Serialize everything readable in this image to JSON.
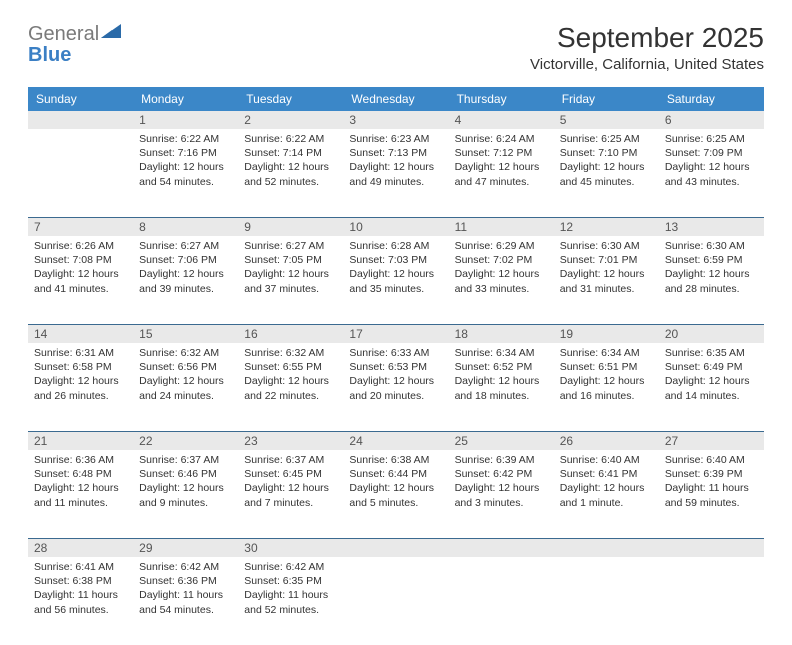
{
  "logo": {
    "text_main": "General",
    "text_sub": "Blue",
    "icon_color": "#2a6aa8"
  },
  "title": {
    "month_year": "September 2025",
    "location": "Victorville, California, United States"
  },
  "colors": {
    "header_bg": "#3b87c8",
    "header_text": "#ffffff",
    "daynum_bg": "#e9e9e9",
    "week_border": "#3b6a90",
    "text": "#333333"
  },
  "day_names": [
    "Sunday",
    "Monday",
    "Tuesday",
    "Wednesday",
    "Thursday",
    "Friday",
    "Saturday"
  ],
  "weeks": [
    {
      "nums": [
        "",
        "1",
        "2",
        "3",
        "4",
        "5",
        "6"
      ],
      "cells": [
        null,
        {
          "sunrise": "Sunrise: 6:22 AM",
          "sunset": "Sunset: 7:16 PM",
          "daylight": "Daylight: 12 hours and 54 minutes."
        },
        {
          "sunrise": "Sunrise: 6:22 AM",
          "sunset": "Sunset: 7:14 PM",
          "daylight": "Daylight: 12 hours and 52 minutes."
        },
        {
          "sunrise": "Sunrise: 6:23 AM",
          "sunset": "Sunset: 7:13 PM",
          "daylight": "Daylight: 12 hours and 49 minutes."
        },
        {
          "sunrise": "Sunrise: 6:24 AM",
          "sunset": "Sunset: 7:12 PM",
          "daylight": "Daylight: 12 hours and 47 minutes."
        },
        {
          "sunrise": "Sunrise: 6:25 AM",
          "sunset": "Sunset: 7:10 PM",
          "daylight": "Daylight: 12 hours and 45 minutes."
        },
        {
          "sunrise": "Sunrise: 6:25 AM",
          "sunset": "Sunset: 7:09 PM",
          "daylight": "Daylight: 12 hours and 43 minutes."
        }
      ]
    },
    {
      "nums": [
        "7",
        "8",
        "9",
        "10",
        "11",
        "12",
        "13"
      ],
      "cells": [
        {
          "sunrise": "Sunrise: 6:26 AM",
          "sunset": "Sunset: 7:08 PM",
          "daylight": "Daylight: 12 hours and 41 minutes."
        },
        {
          "sunrise": "Sunrise: 6:27 AM",
          "sunset": "Sunset: 7:06 PM",
          "daylight": "Daylight: 12 hours and 39 minutes."
        },
        {
          "sunrise": "Sunrise: 6:27 AM",
          "sunset": "Sunset: 7:05 PM",
          "daylight": "Daylight: 12 hours and 37 minutes."
        },
        {
          "sunrise": "Sunrise: 6:28 AM",
          "sunset": "Sunset: 7:03 PM",
          "daylight": "Daylight: 12 hours and 35 minutes."
        },
        {
          "sunrise": "Sunrise: 6:29 AM",
          "sunset": "Sunset: 7:02 PM",
          "daylight": "Daylight: 12 hours and 33 minutes."
        },
        {
          "sunrise": "Sunrise: 6:30 AM",
          "sunset": "Sunset: 7:01 PM",
          "daylight": "Daylight: 12 hours and 31 minutes."
        },
        {
          "sunrise": "Sunrise: 6:30 AM",
          "sunset": "Sunset: 6:59 PM",
          "daylight": "Daylight: 12 hours and 28 minutes."
        }
      ]
    },
    {
      "nums": [
        "14",
        "15",
        "16",
        "17",
        "18",
        "19",
        "20"
      ],
      "cells": [
        {
          "sunrise": "Sunrise: 6:31 AM",
          "sunset": "Sunset: 6:58 PM",
          "daylight": "Daylight: 12 hours and 26 minutes."
        },
        {
          "sunrise": "Sunrise: 6:32 AM",
          "sunset": "Sunset: 6:56 PM",
          "daylight": "Daylight: 12 hours and 24 minutes."
        },
        {
          "sunrise": "Sunrise: 6:32 AM",
          "sunset": "Sunset: 6:55 PM",
          "daylight": "Daylight: 12 hours and 22 minutes."
        },
        {
          "sunrise": "Sunrise: 6:33 AM",
          "sunset": "Sunset: 6:53 PM",
          "daylight": "Daylight: 12 hours and 20 minutes."
        },
        {
          "sunrise": "Sunrise: 6:34 AM",
          "sunset": "Sunset: 6:52 PM",
          "daylight": "Daylight: 12 hours and 18 minutes."
        },
        {
          "sunrise": "Sunrise: 6:34 AM",
          "sunset": "Sunset: 6:51 PM",
          "daylight": "Daylight: 12 hours and 16 minutes."
        },
        {
          "sunrise": "Sunrise: 6:35 AM",
          "sunset": "Sunset: 6:49 PM",
          "daylight": "Daylight: 12 hours and 14 minutes."
        }
      ]
    },
    {
      "nums": [
        "21",
        "22",
        "23",
        "24",
        "25",
        "26",
        "27"
      ],
      "cells": [
        {
          "sunrise": "Sunrise: 6:36 AM",
          "sunset": "Sunset: 6:48 PM",
          "daylight": "Daylight: 12 hours and 11 minutes."
        },
        {
          "sunrise": "Sunrise: 6:37 AM",
          "sunset": "Sunset: 6:46 PM",
          "daylight": "Daylight: 12 hours and 9 minutes."
        },
        {
          "sunrise": "Sunrise: 6:37 AM",
          "sunset": "Sunset: 6:45 PM",
          "daylight": "Daylight: 12 hours and 7 minutes."
        },
        {
          "sunrise": "Sunrise: 6:38 AM",
          "sunset": "Sunset: 6:44 PM",
          "daylight": "Daylight: 12 hours and 5 minutes."
        },
        {
          "sunrise": "Sunrise: 6:39 AM",
          "sunset": "Sunset: 6:42 PM",
          "daylight": "Daylight: 12 hours and 3 minutes."
        },
        {
          "sunrise": "Sunrise: 6:40 AM",
          "sunset": "Sunset: 6:41 PM",
          "daylight": "Daylight: 12 hours and 1 minute."
        },
        {
          "sunrise": "Sunrise: 6:40 AM",
          "sunset": "Sunset: 6:39 PM",
          "daylight": "Daylight: 11 hours and 59 minutes."
        }
      ]
    },
    {
      "nums": [
        "28",
        "29",
        "30",
        "",
        "",
        "",
        ""
      ],
      "cells": [
        {
          "sunrise": "Sunrise: 6:41 AM",
          "sunset": "Sunset: 6:38 PM",
          "daylight": "Daylight: 11 hours and 56 minutes."
        },
        {
          "sunrise": "Sunrise: 6:42 AM",
          "sunset": "Sunset: 6:36 PM",
          "daylight": "Daylight: 11 hours and 54 minutes."
        },
        {
          "sunrise": "Sunrise: 6:42 AM",
          "sunset": "Sunset: 6:35 PM",
          "daylight": "Daylight: 11 hours and 52 minutes."
        },
        null,
        null,
        null,
        null
      ]
    }
  ]
}
